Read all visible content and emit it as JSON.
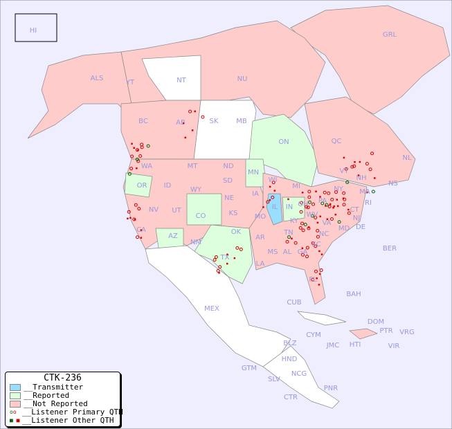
{
  "title": "CTK-236",
  "colors": {
    "ocean": "#eeeeff",
    "transmitter": "#99ddff",
    "reported": "#ddffdd",
    "not_reported": "#ffcccc",
    "unlisted": "#ffffff",
    "primary_qth": "#cc0000",
    "other_qth": "#dd0000",
    "reported_qth": "#006600",
    "label": "#9999dd"
  },
  "legend": [
    {
      "label": "__Transmitter",
      "type": "transmitter"
    },
    {
      "label": "__Reported",
      "type": "reported"
    },
    {
      "label": "__Not Reported",
      "type": "not_reported"
    },
    {
      "label": "__Listener Primary QTH",
      "type": "primary"
    },
    {
      "label": "__Listener Other QTH",
      "type": "other"
    }
  ],
  "regions": [
    "HI",
    "ALS",
    "YT",
    "NT",
    "NU",
    "GRL",
    "BC",
    "AB",
    "SK",
    "MB",
    "ON",
    "QC",
    "NL",
    "NS",
    "WA",
    "OR",
    "ID",
    "MT",
    "WY",
    "ND",
    "SD",
    "NE",
    "MN",
    "WI",
    "MI",
    "IA",
    "IL",
    "IN",
    "OH",
    "PA",
    "NY",
    "VT",
    "NH",
    "MA",
    "CT",
    "RI",
    "NJ",
    "DE",
    "MD",
    "WV",
    "VA",
    "KY",
    "TN",
    "NC",
    "SC",
    "GA",
    "AL",
    "MS",
    "LA",
    "AR",
    "MO",
    "KS",
    "OK",
    "TX",
    "NM",
    "CO",
    "UT",
    "NV",
    "CA",
    "AZ",
    "FL",
    "MEX",
    "CUB",
    "BAH",
    "BER",
    "DOM",
    "PTR",
    "VRG",
    "VIR",
    "HTI",
    "JMC",
    "CYM",
    "BLZ",
    "HND",
    "GTM",
    "SLV",
    "NCG",
    "CTR",
    "PNR"
  ]
}
